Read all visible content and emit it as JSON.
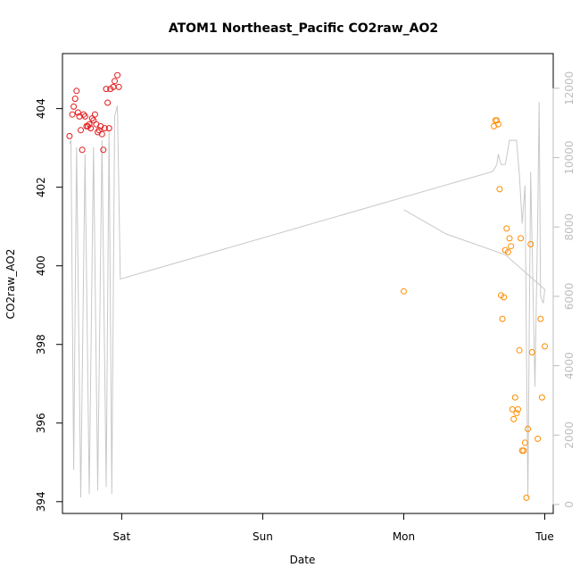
{
  "chart_data": {
    "type": "scatter",
    "title": "ATOM1 Northeast_Pacific CO2raw_AO2",
    "xlabel": "Date",
    "ylabel": "CO2raw_AO2",
    "x_ticks": [
      "Sat",
      "Sun",
      "Mon",
      "Tue"
    ],
    "x_range_days": [
      -0.42,
      3.06
    ],
    "ylim": [
      393.7,
      405.4
    ],
    "y_ticks": [
      "394",
      "396",
      "398",
      "400",
      "402",
      "404"
    ],
    "y2_ticks": [
      "0",
      "2000",
      "4000",
      "6000",
      "8000",
      "10000",
      "12000"
    ],
    "y2lim": [
      -260,
      13000
    ],
    "grid": false,
    "colors": {
      "series_a": "#e41a1c",
      "series_b": "#ff8c00",
      "altitude_line": "#c8c8c8",
      "right_axis": "#bdbdbd"
    },
    "series": [
      {
        "color": "#e41a1c",
        "points": [
          [
            -0.37,
            403.3
          ],
          [
            -0.35,
            403.85
          ],
          [
            -0.34,
            404.05
          ],
          [
            -0.33,
            404.25
          ],
          [
            -0.32,
            404.45
          ],
          [
            -0.31,
            403.9
          ],
          [
            -0.3,
            403.8
          ],
          [
            -0.29,
            403.45
          ],
          [
            -0.28,
            402.95
          ],
          [
            -0.27,
            403.85
          ],
          [
            -0.26,
            403.8
          ],
          [
            -0.25,
            403.55
          ],
          [
            -0.24,
            403.55
          ],
          [
            -0.23,
            403.6
          ],
          [
            -0.22,
            403.5
          ],
          [
            -0.21,
            403.75
          ],
          [
            -0.2,
            403.7
          ],
          [
            -0.19,
            403.85
          ],
          [
            -0.18,
            403.6
          ],
          [
            -0.17,
            403.4
          ],
          [
            -0.16,
            403.45
          ],
          [
            -0.15,
            403.55
          ],
          [
            -0.14,
            403.35
          ],
          [
            -0.13,
            402.95
          ],
          [
            -0.12,
            403.5
          ],
          [
            -0.11,
            404.5
          ],
          [
            -0.1,
            404.15
          ],
          [
            -0.09,
            403.5
          ],
          [
            -0.08,
            404.5
          ],
          [
            -0.06,
            404.55
          ],
          [
            -0.05,
            404.7
          ],
          [
            -0.03,
            404.85
          ],
          [
            -0.02,
            404.55
          ]
        ]
      },
      {
        "color": "#ff8c00",
        "points": [
          [
            2.0,
            399.35
          ],
          [
            2.64,
            403.55
          ],
          [
            2.65,
            403.7
          ],
          [
            2.66,
            403.7
          ],
          [
            2.67,
            403.6
          ],
          [
            2.68,
            401.95
          ],
          [
            2.69,
            399.25
          ],
          [
            2.7,
            398.65
          ],
          [
            2.71,
            399.2
          ],
          [
            2.72,
            400.4
          ],
          [
            2.73,
            400.95
          ],
          [
            2.74,
            400.35
          ],
          [
            2.75,
            400.7
          ],
          [
            2.76,
            400.5
          ],
          [
            2.77,
            396.35
          ],
          [
            2.78,
            396.1
          ],
          [
            2.79,
            396.65
          ],
          [
            2.8,
            396.25
          ],
          [
            2.81,
            396.35
          ],
          [
            2.82,
            397.85
          ],
          [
            2.83,
            400.7
          ],
          [
            2.84,
            395.3
          ],
          [
            2.85,
            395.3
          ],
          [
            2.86,
            395.5
          ],
          [
            2.87,
            394.1
          ],
          [
            2.88,
            395.85
          ],
          [
            2.9,
            400.55
          ],
          [
            2.91,
            397.8
          ],
          [
            2.95,
            395.6
          ],
          [
            2.97,
            398.65
          ],
          [
            2.98,
            396.65
          ],
          [
            3.0,
            397.95
          ]
        ]
      }
    ],
    "altitude_line": [
      [
        -0.37,
        10400
      ],
      [
        -0.36,
        10500
      ],
      [
        -0.34,
        1000
      ],
      [
        -0.32,
        10300
      ],
      [
        -0.29,
        200
      ],
      [
        -0.26,
        10100
      ],
      [
        -0.23,
        300
      ],
      [
        -0.2,
        10300
      ],
      [
        -0.17,
        400
      ],
      [
        -0.14,
        10500
      ],
      [
        -0.11,
        500
      ],
      [
        -0.09,
        10800
      ],
      [
        -0.07,
        300
      ],
      [
        -0.05,
        11200
      ],
      [
        -0.03,
        11500
      ],
      [
        -0.01,
        6500
      ],
      [
        2.63,
        9600
      ],
      [
        2.66,
        9800
      ],
      [
        2.67,
        10100
      ],
      [
        2.69,
        9800
      ],
      [
        2.72,
        9800
      ],
      [
        2.75,
        10500
      ],
      [
        2.8,
        10500
      ],
      [
        2.82,
        9500
      ],
      [
        2.84,
        8100
      ],
      [
        2.86,
        9200
      ],
      [
        2.87,
        4500
      ],
      [
        2.88,
        200
      ],
      [
        2.89,
        5000
      ],
      [
        2.9,
        9600
      ],
      [
        2.93,
        3400
      ],
      [
        2.95,
        8200
      ],
      [
        2.96,
        11600
      ],
      [
        2.97,
        6000
      ],
      [
        2.99,
        5800
      ],
      [
        3.0,
        6200
      ],
      [
        2.72,
        7200
      ],
      [
        2.3,
        7800
      ],
      [
        2.0,
        8500
      ]
    ]
  }
}
